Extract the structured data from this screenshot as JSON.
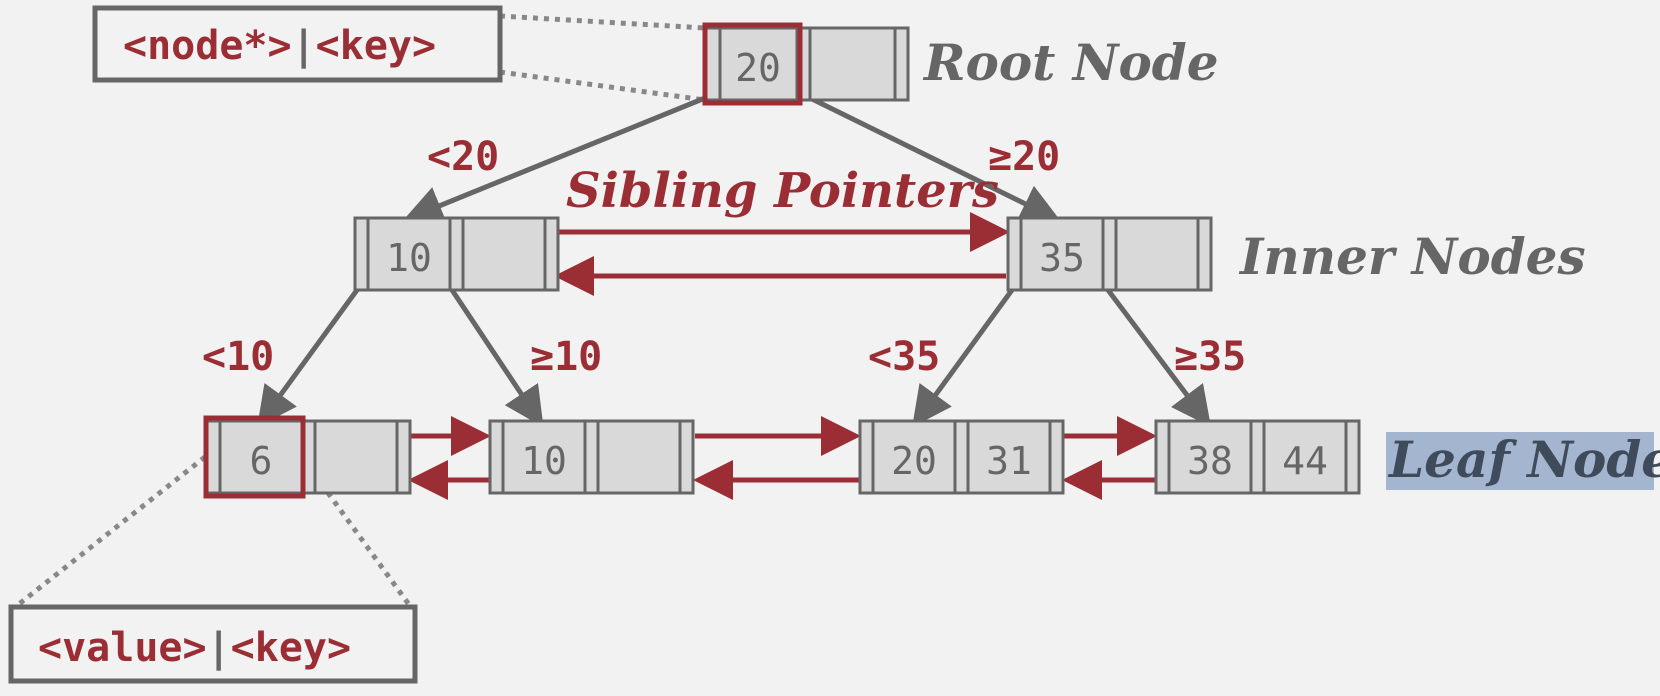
{
  "colors": {
    "background": "#f2f2f2",
    "node_fill": "#d9d9d9",
    "node_stroke": "#666666",
    "accent_red": "#9b2d35",
    "edge_gray": "#666666",
    "leaf_highlight": "#a3b5cf",
    "leaf_text": "#3f4b5a"
  },
  "callouts": {
    "top": {
      "left": "<node*>",
      "sep": "|",
      "right": "<key>"
    },
    "bottom": {
      "left": "<value>",
      "sep": "|",
      "right": "<key>"
    }
  },
  "tiers": {
    "root": "Root Node",
    "inner": "Inner Nodes",
    "leaf": "Leaf Nodes"
  },
  "sibling_label": "Sibling Pointers",
  "nodes": {
    "root": {
      "key1": "20",
      "key2": ""
    },
    "inner_left": {
      "key1": "10",
      "key2": ""
    },
    "inner_right": {
      "key1": "35",
      "key2": ""
    },
    "leaf_1": {
      "key1": "6",
      "key2": ""
    },
    "leaf_2": {
      "key1": "10",
      "key2": ""
    },
    "leaf_3": {
      "key1": "20",
      "key2": "31"
    },
    "leaf_4": {
      "key1": "38",
      "key2": "44"
    }
  },
  "edge_labels": {
    "root_left": "<20",
    "root_right": "≥20",
    "inner_left_left": "<10",
    "inner_left_right": "≥10",
    "inner_right_left": "<35",
    "inner_right_right": "≥35"
  }
}
